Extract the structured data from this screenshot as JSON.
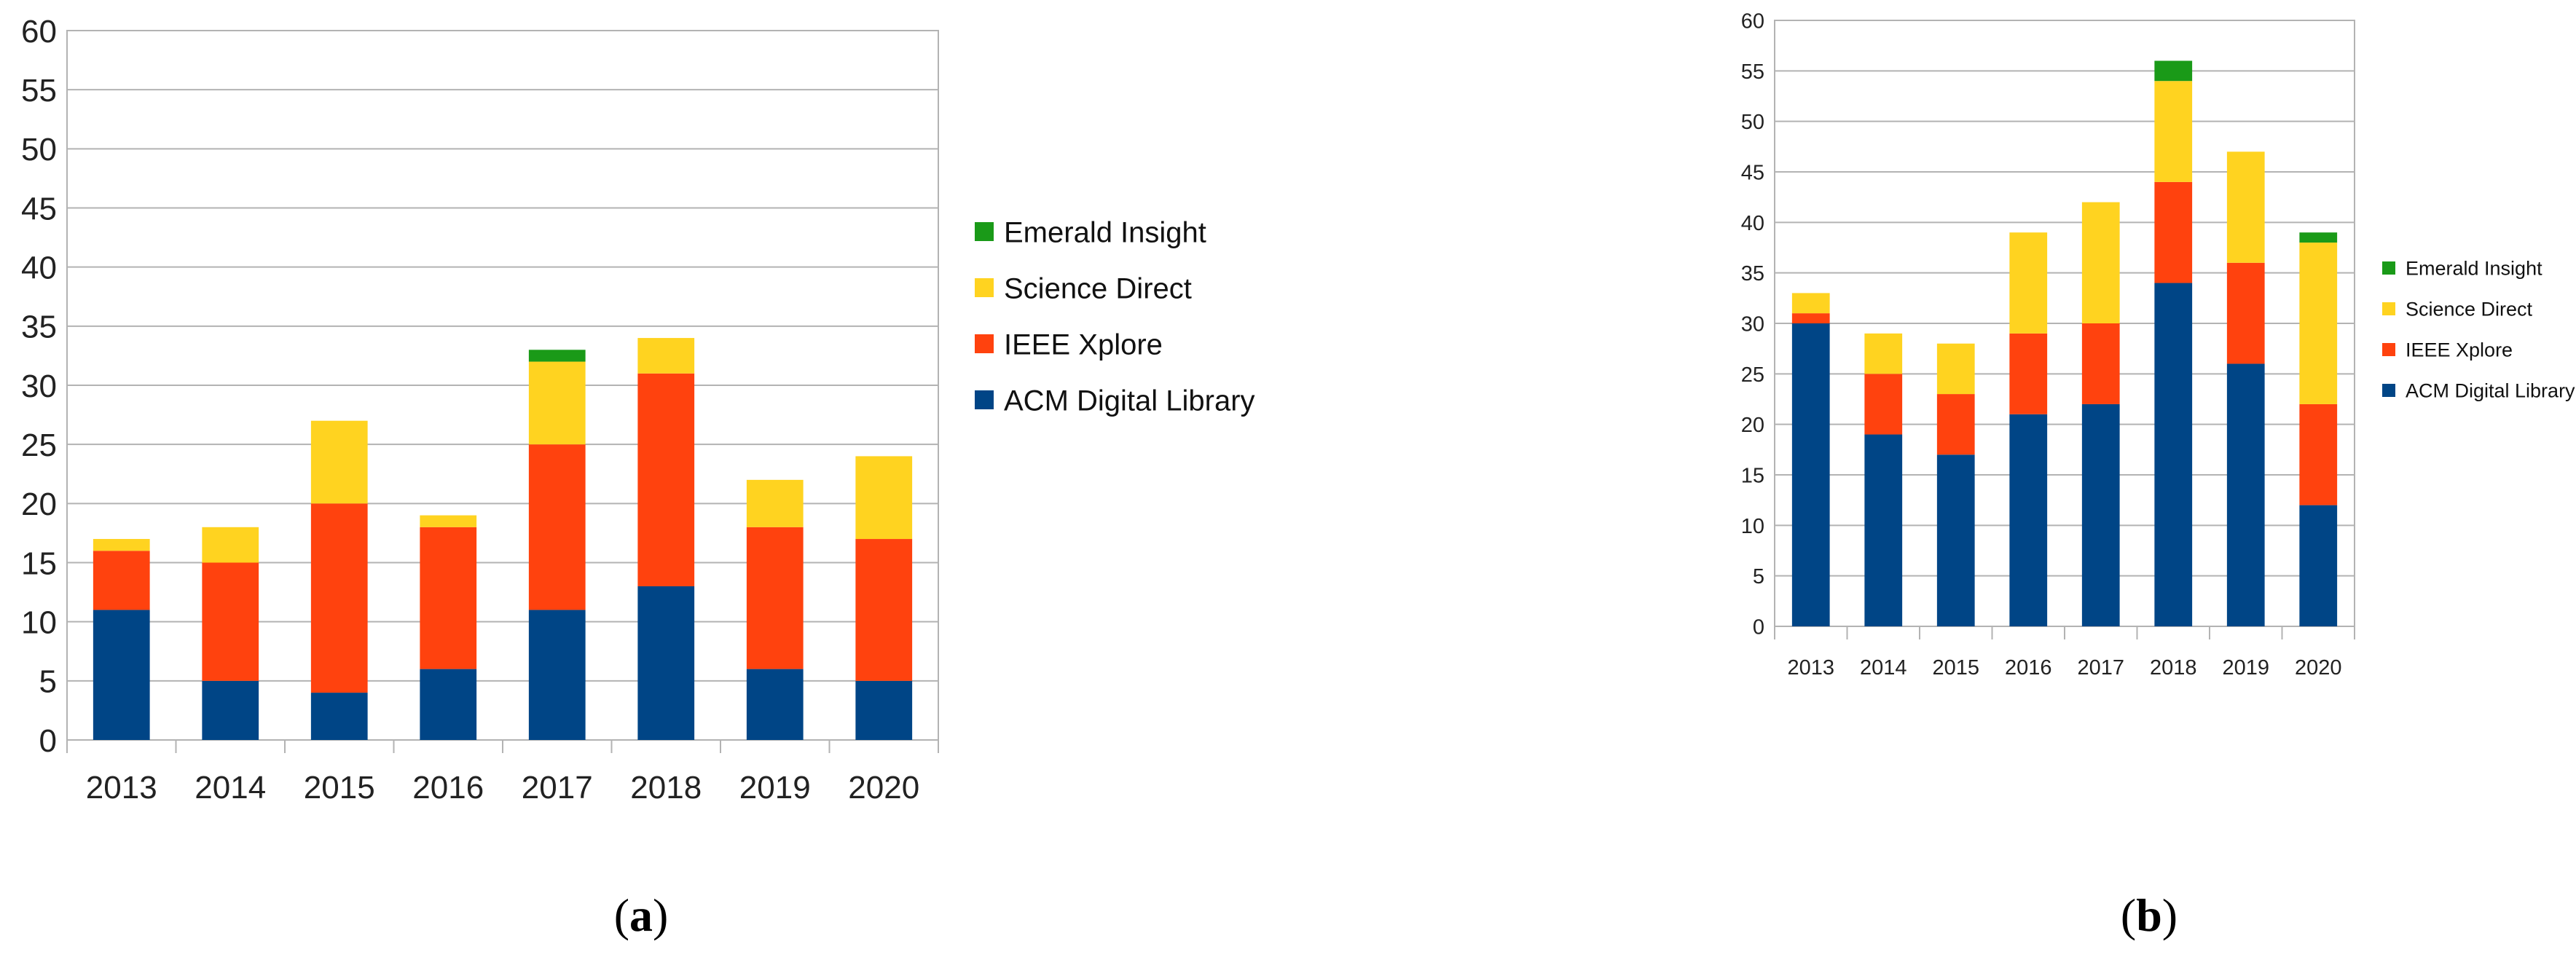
{
  "colors": {
    "ACM Digital Library": "#004586",
    "IEEE Xplore": "#ff420e",
    "Science Direct": "#ffd320",
    "Emerald Insight": "#1a9a18"
  },
  "legend": [
    "Emerald Insight",
    "Science Direct",
    "IEEE Xplore",
    "ACM Digital Library"
  ],
  "captions": {
    "a": {
      "open": "(",
      "letter": "a",
      "close": ")"
    },
    "b": {
      "open": "(",
      "letter": "b",
      "close": ")"
    }
  },
  "chart_data": [
    {
      "id": "a",
      "type": "bar",
      "stacked": true,
      "categories": [
        "2013",
        "2014",
        "2015",
        "2016",
        "2017",
        "2018",
        "2019",
        "2020"
      ],
      "ylim": [
        0,
        60
      ],
      "yticks": [
        0,
        5,
        10,
        15,
        20,
        25,
        30,
        35,
        40,
        45,
        50,
        55,
        60
      ],
      "grid": true,
      "legend_position": "right",
      "series": [
        {
          "name": "ACM Digital Library",
          "values": [
            11,
            5,
            4,
            6,
            11,
            13,
            6,
            5
          ]
        },
        {
          "name": "IEEE Xplore",
          "values": [
            5,
            10,
            16,
            12,
            14,
            18,
            12,
            12
          ]
        },
        {
          "name": "Science Direct",
          "values": [
            1,
            3,
            7,
            1,
            7,
            3,
            4,
            7
          ]
        },
        {
          "name": "Emerald Insight",
          "values": [
            0,
            0,
            0,
            0,
            1,
            0,
            0,
            0
          ]
        }
      ]
    },
    {
      "id": "b",
      "type": "bar",
      "stacked": true,
      "categories": [
        "2013",
        "2014",
        "2015",
        "2016",
        "2017",
        "2018",
        "2019",
        "2020"
      ],
      "ylim": [
        0,
        60
      ],
      "yticks": [
        0,
        5,
        10,
        15,
        20,
        25,
        30,
        35,
        40,
        45,
        50,
        55,
        60
      ],
      "grid": true,
      "legend_position": "right",
      "series": [
        {
          "name": "ACM Digital Library",
          "values": [
            30,
            19,
            17,
            21,
            22,
            34,
            26,
            12
          ]
        },
        {
          "name": "IEEE Xplore",
          "values": [
            1,
            6,
            6,
            8,
            8,
            10,
            10,
            10
          ]
        },
        {
          "name": "Science Direct",
          "values": [
            2,
            4,
            5,
            10,
            12,
            10,
            11,
            16
          ]
        },
        {
          "name": "Emerald Insight",
          "values": [
            0,
            0,
            0,
            0,
            0,
            2,
            0,
            1
          ]
        }
      ]
    }
  ]
}
